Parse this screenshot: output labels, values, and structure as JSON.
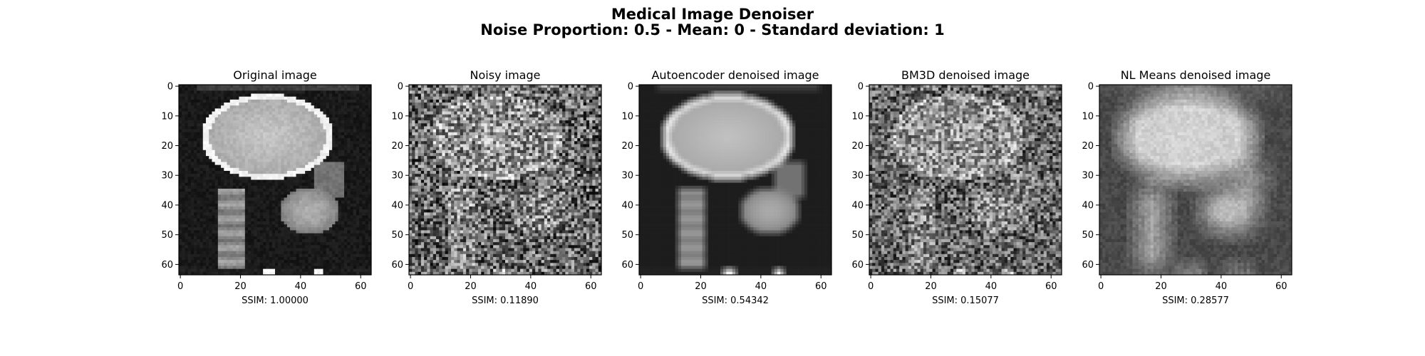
{
  "figure": {
    "title_line_1": "Medical Image Denoiser",
    "title_line_2": "Noise Proportion: 0.5 - Mean: 0 - Standard deviation: 1"
  },
  "chart_data": [
    {
      "type": "heatmap",
      "title": "Original image",
      "xlabel": "SSIM: 1.00000",
      "image_size": [
        64,
        64
      ],
      "colormap": "gray",
      "xticks": [
        0,
        20,
        40,
        60
      ],
      "yticks": [
        0,
        10,
        20,
        30,
        40,
        50,
        60
      ],
      "xlim": [
        -0.5,
        63.5
      ],
      "ylim": [
        63.5,
        -0.5
      ],
      "ssim": 1.0
    },
    {
      "type": "heatmap",
      "title": "Noisy image",
      "xlabel": "SSIM: 0.11890",
      "image_size": [
        64,
        64
      ],
      "colormap": "gray",
      "xticks": [
        0,
        20,
        40,
        60
      ],
      "yticks": [
        0,
        10,
        20,
        30,
        40,
        50,
        60
      ],
      "xlim": [
        -0.5,
        63.5
      ],
      "ylim": [
        63.5,
        -0.5
      ],
      "ssim": 0.1189
    },
    {
      "type": "heatmap",
      "title": "Autoencoder denoised image",
      "xlabel": "SSIM: 0.54342",
      "image_size": [
        64,
        64
      ],
      "colormap": "gray",
      "xticks": [
        0,
        20,
        40,
        60
      ],
      "yticks": [
        0,
        10,
        20,
        30,
        40,
        50,
        60
      ],
      "xlim": [
        -0.5,
        63.5
      ],
      "ylim": [
        63.5,
        -0.5
      ],
      "ssim": 0.54342
    },
    {
      "type": "heatmap",
      "title": "BM3D denoised image",
      "xlabel": "SSIM: 0.15077",
      "image_size": [
        64,
        64
      ],
      "colormap": "gray",
      "xticks": [
        0,
        20,
        40,
        60
      ],
      "yticks": [
        0,
        10,
        20,
        30,
        40,
        50,
        60
      ],
      "xlim": [
        -0.5,
        63.5
      ],
      "ylim": [
        63.5,
        -0.5
      ],
      "ssim": 0.15077
    },
    {
      "type": "heatmap",
      "title": "NL Means denoised image",
      "xlabel": "SSIM: 0.28577",
      "image_size": [
        64,
        64
      ],
      "colormap": "gray",
      "xticks": [
        0,
        20,
        40,
        60
      ],
      "yticks": [
        0,
        10,
        20,
        30,
        40,
        50,
        60
      ],
      "xlim": [
        -0.5,
        63.5
      ],
      "ylim": [
        63.5,
        -0.5
      ],
      "ssim": 0.28577
    }
  ]
}
